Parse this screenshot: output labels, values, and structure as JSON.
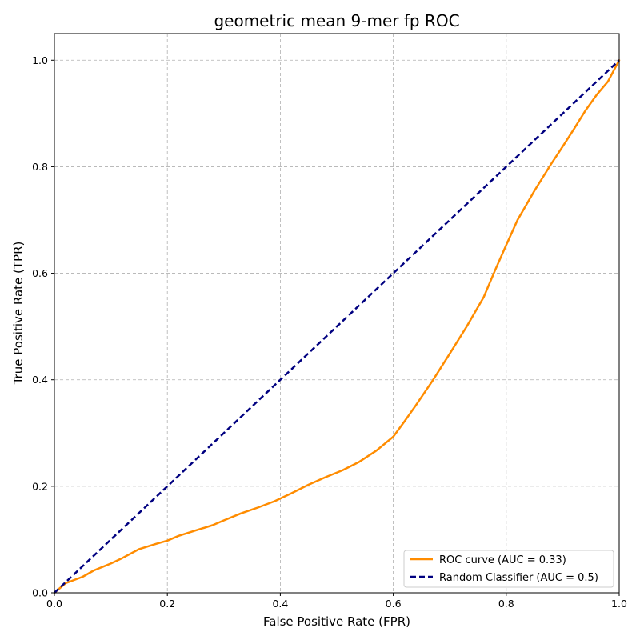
{
  "chart_data": {
    "type": "line",
    "title": "geometric mean 9-mer fp ROC",
    "xlabel": "False Positive Rate (FPR)",
    "ylabel": "True Positive Rate (TPR)",
    "xlim": [
      0.0,
      1.0
    ],
    "ylim": [
      0.0,
      1.05
    ],
    "xticks": [
      "0.0",
      "0.2",
      "0.4",
      "0.6",
      "0.8",
      "1.0"
    ],
    "yticks": [
      "0.0",
      "0.2",
      "0.4",
      "0.6",
      "0.8",
      "1.0"
    ],
    "grid": true,
    "legend_position": "bottom-right",
    "series": [
      {
        "name": "ROC curve (AUC = 0.33)",
        "color": "#ff8c00",
        "style": "solid",
        "x": [
          0,
          0.02,
          0.05,
          0.07,
          0.1,
          0.12,
          0.15,
          0.18,
          0.2,
          0.22,
          0.25,
          0.28,
          0.3,
          0.33,
          0.36,
          0.39,
          0.42,
          0.45,
          0.48,
          0.51,
          0.54,
          0.57,
          0.6,
          0.62,
          0.64,
          0.67,
          0.7,
          0.73,
          0.76,
          0.78,
          0.8,
          0.82,
          0.85,
          0.88,
          0.9,
          0.92,
          0.94,
          0.96,
          0.98,
          1.0
        ],
        "y": [
          0,
          0.018,
          0.03,
          0.042,
          0.055,
          0.065,
          0.082,
          0.092,
          0.098,
          0.107,
          0.117,
          0.127,
          0.136,
          0.149,
          0.16,
          0.172,
          0.187,
          0.203,
          0.217,
          0.23,
          0.246,
          0.267,
          0.293,
          0.322,
          0.352,
          0.399,
          0.449,
          0.5,
          0.555,
          0.605,
          0.653,
          0.7,
          0.755,
          0.806,
          0.838,
          0.871,
          0.905,
          0.935,
          0.96,
          1.0
        ]
      },
      {
        "name": "Random Classifier (AUC = 0.5)",
        "color": "#000080",
        "style": "dashed",
        "x": [
          0,
          1
        ],
        "y": [
          0,
          1
        ]
      }
    ]
  }
}
